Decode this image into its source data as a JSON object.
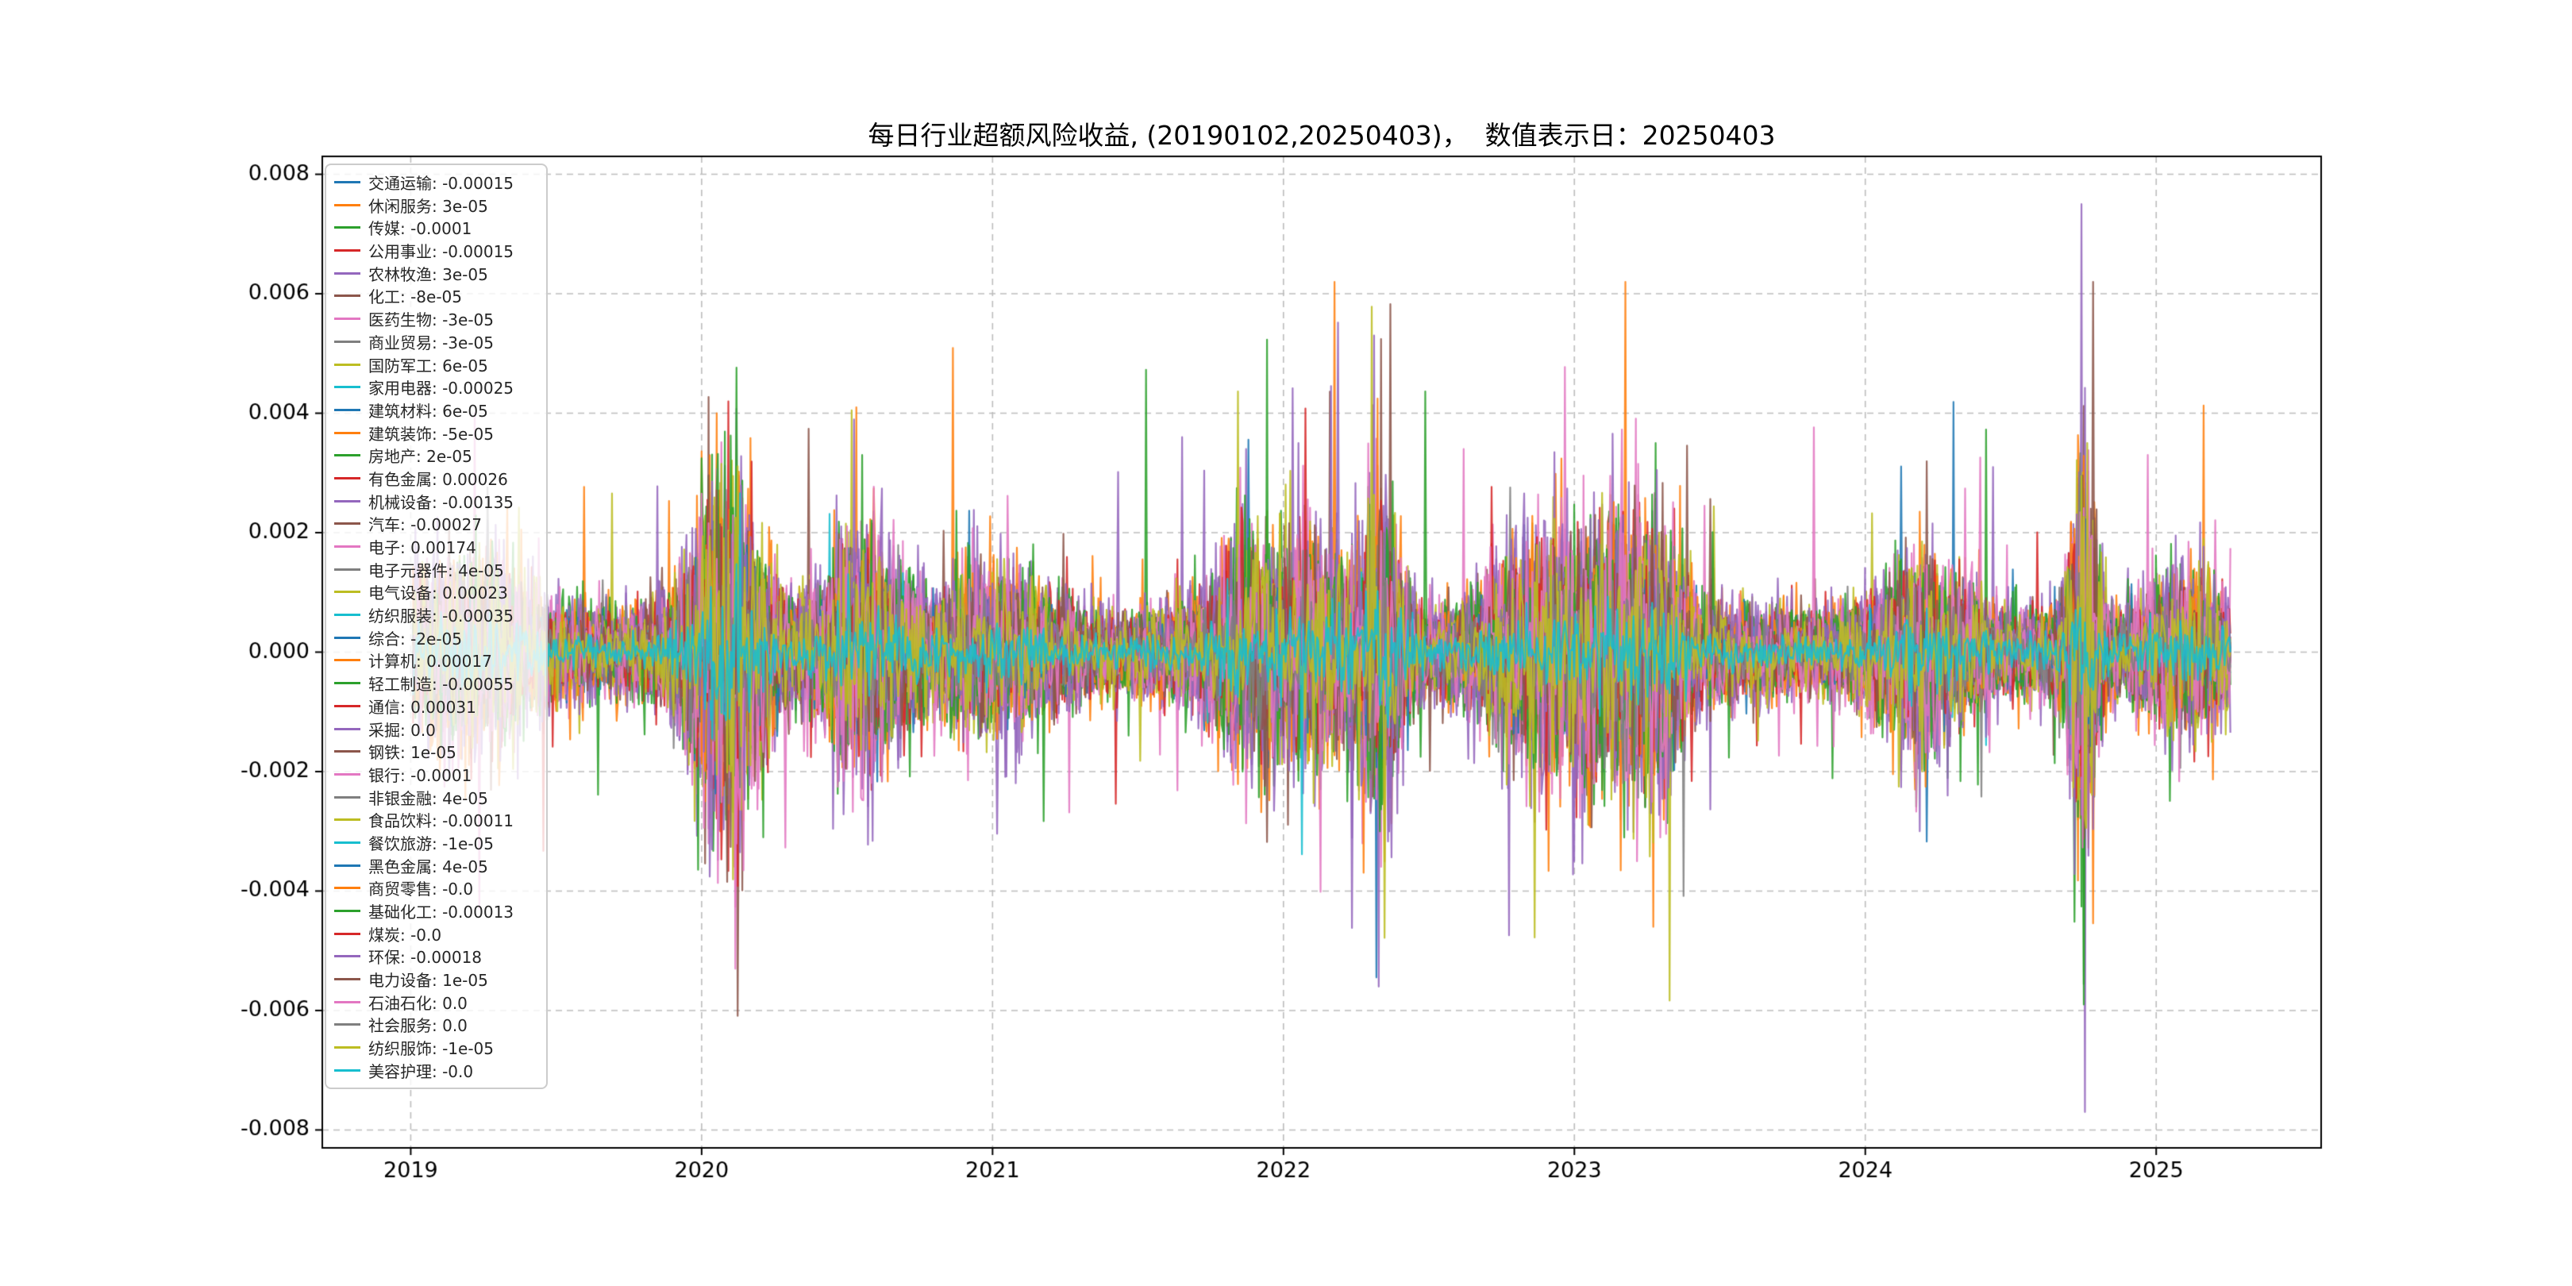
{
  "figure": {
    "background": "#ffffff"
  },
  "chart_data": {
    "type": "line",
    "title": "每日行业超额风险收益, (20190102,20250403)，  数值表示日：20250403",
    "date_range": [
      "20190102",
      "20250403"
    ],
    "value_date": "20250403",
    "grid": true,
    "grid_style": "dashed",
    "legend_position": "upper left",
    "x_ticks": [
      2019,
      2020,
      2021,
      2022,
      2023,
      2024,
      2025
    ],
    "x_tick_labels": [
      "2019",
      "2020",
      "2021",
      "2022",
      "2023",
      "2024",
      "2025"
    ],
    "y_ticks": [
      0.008,
      0.006,
      0.004,
      0.002,
      0.0,
      -0.002,
      -0.004,
      -0.006,
      -0.008
    ],
    "y_tick_labels": [
      "0.008",
      "0.006",
      "0.004",
      "0.002",
      "0.000",
      "-0.002",
      "-0.004",
      "-0.006",
      "-0.008"
    ],
    "xlim": [
      2018.696,
      2025.567
    ],
    "ylim": [
      -0.0083,
      0.0083
    ],
    "x_data_range": [
      2019.008,
      2025.255
    ],
    "series": [
      {
        "name": "交通运输",
        "value": "-0.00015",
        "color": "#1f77b4"
      },
      {
        "name": "休闲服务",
        "value": "3e-05",
        "color": "#ff7f0e"
      },
      {
        "name": "传媒",
        "value": "-0.0001",
        "color": "#2ca02c"
      },
      {
        "name": "公用事业",
        "value": "-0.00015",
        "color": "#d62728"
      },
      {
        "name": "农林牧渔",
        "value": "3e-05",
        "color": "#9467bd"
      },
      {
        "name": "化工",
        "value": "-8e-05",
        "color": "#8c564b"
      },
      {
        "name": "医药生物",
        "value": "-3e-05",
        "color": "#e377c2"
      },
      {
        "name": "商业贸易",
        "value": "-3e-05",
        "color": "#7f7f7f"
      },
      {
        "name": "国防军工",
        "value": "6e-05",
        "color": "#bcbd22"
      },
      {
        "name": "家用电器",
        "value": "-0.00025",
        "color": "#17becf"
      },
      {
        "name": "建筑材料",
        "value": "6e-05",
        "color": "#1f77b4"
      },
      {
        "name": "建筑装饰",
        "value": "-5e-05",
        "color": "#ff7f0e"
      },
      {
        "name": "房地产",
        "value": "2e-05",
        "color": "#2ca02c"
      },
      {
        "name": "有色金属",
        "value": "0.00026",
        "color": "#d62728"
      },
      {
        "name": "机械设备",
        "value": "-0.00135",
        "color": "#9467bd"
      },
      {
        "name": "汽车",
        "value": "-0.00027",
        "color": "#8c564b"
      },
      {
        "name": "电子",
        "value": "0.00174",
        "color": "#e377c2"
      },
      {
        "name": "电子元器件",
        "value": "4e-05",
        "color": "#7f7f7f"
      },
      {
        "name": "电气设备",
        "value": "0.00023",
        "color": "#bcbd22"
      },
      {
        "name": "纺织服装",
        "value": "-0.00035",
        "color": "#17becf"
      },
      {
        "name": "综合",
        "value": "-2e-05",
        "color": "#1f77b4"
      },
      {
        "name": "计算机",
        "value": "0.00017",
        "color": "#ff7f0e"
      },
      {
        "name": "轻工制造",
        "value": "-0.00055",
        "color": "#2ca02c"
      },
      {
        "name": "通信",
        "value": "0.00031",
        "color": "#d62728"
      },
      {
        "name": "采掘",
        "value": "0.0",
        "color": "#9467bd"
      },
      {
        "name": "钢铁",
        "value": "1e-05",
        "color": "#8c564b"
      },
      {
        "name": "银行",
        "value": "-0.0001",
        "color": "#e377c2"
      },
      {
        "name": "非银金融",
        "value": "4e-05",
        "color": "#7f7f7f"
      },
      {
        "name": "食品饮料",
        "value": "-0.00011",
        "color": "#bcbd22"
      },
      {
        "name": "餐饮旅游",
        "value": "-1e-05",
        "color": "#17becf"
      },
      {
        "name": "黑色金属",
        "value": "4e-05",
        "color": "#1f77b4"
      },
      {
        "name": "商贸零售",
        "value": "-0.0",
        "color": "#ff7f0e"
      },
      {
        "name": "基础化工",
        "value": "-0.00013",
        "color": "#2ca02c"
      },
      {
        "name": "煤炭",
        "value": "-0.0",
        "color": "#d62728"
      },
      {
        "name": "环保",
        "value": "-0.00018",
        "color": "#9467bd"
      },
      {
        "name": "电力设备",
        "value": "1e-05",
        "color": "#8c564b"
      },
      {
        "name": "石油石化",
        "value": "0.0",
        "color": "#e377c2"
      },
      {
        "name": "社会服务",
        "value": "0.0",
        "color": "#7f7f7f"
      },
      {
        "name": "纺织服饰",
        "value": "-1e-05",
        "color": "#bcbd22"
      },
      {
        "name": "美容护理",
        "value": "-0.0",
        "color": "#17becf"
      }
    ],
    "notable_spikes": [
      {
        "series_index": 4,
        "t": 2024.745,
        "value": 0.0075
      },
      {
        "series_index": 4,
        "t": 2024.754,
        "value": -0.0077
      },
      {
        "series_index": 14,
        "t": 2022.31,
        "value": 0.0053
      },
      {
        "series_index": 14,
        "t": 2022.326,
        "value": -0.0056
      },
      {
        "series_index": 1,
        "t": 2020.05,
        "value": 0.004
      },
      {
        "series_index": 13,
        "t": 2020.09,
        "value": 0.0042
      },
      {
        "series_index": 6,
        "t": 2020.115,
        "value": -0.0053
      },
      {
        "series_index": 1,
        "t": 2023.27,
        "value": -0.0046
      },
      {
        "series_index": 12,
        "t": 2020.55,
        "value": 0.0033
      },
      {
        "series_index": 4,
        "t": 2021.87,
        "value": 0.0034
      },
      {
        "series_index": 16,
        "t": 2022.62,
        "value": 0.0034
      },
      {
        "series_index": 14,
        "t": 2022.05,
        "value": 0.0035
      },
      {
        "series_index": 6,
        "t": 2019.22,
        "value": 0.004
      },
      {
        "series_index": 6,
        "t": 2019.235,
        "value": -0.0043
      },
      {
        "series_index": 4,
        "t": 2024.44,
        "value": 0.0031
      },
      {
        "series_index": 6,
        "t": 2024.97,
        "value": 0.0033
      },
      {
        "series_index": 12,
        "t": 2023.28,
        "value": 0.0035
      },
      {
        "series_index": 1,
        "t": 2020.53,
        "value": 0.0041
      },
      {
        "series_index": 4,
        "t": 2021.65,
        "value": 0.0036
      },
      {
        "series_index": 14,
        "t": 2023.0,
        "value": -0.0035
      }
    ]
  }
}
